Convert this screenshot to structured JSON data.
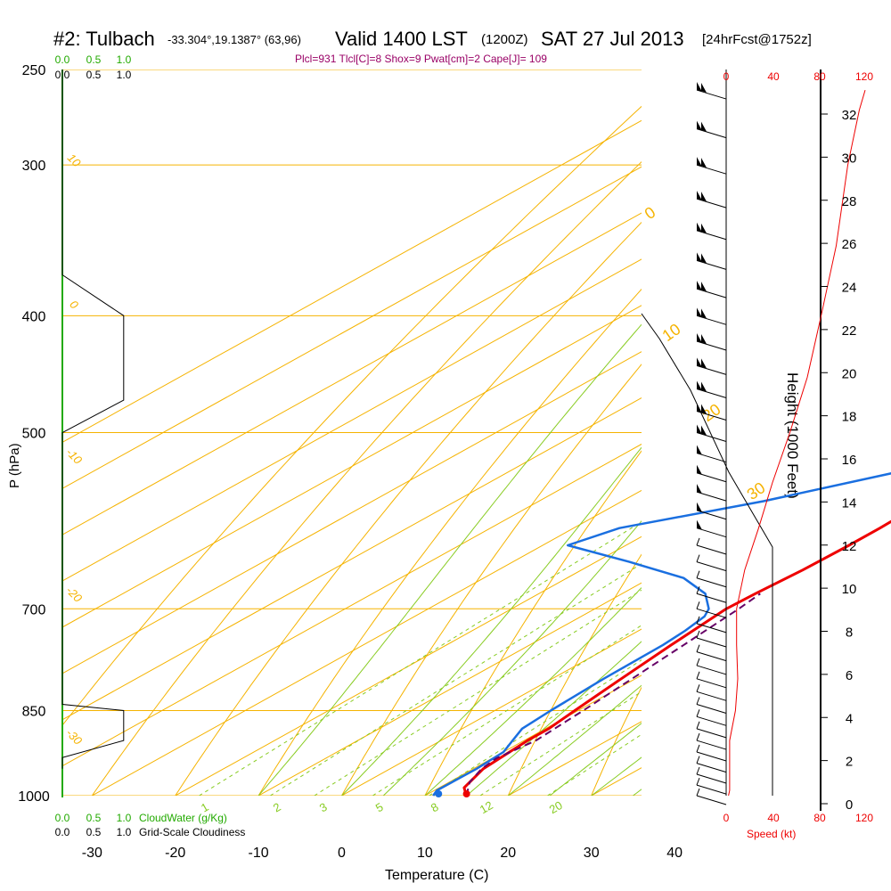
{
  "header": {
    "station": "#2: Tulbach",
    "coords": "-33.304°,19.1387° (63,96)",
    "valid": "Valid 1400 LST",
    "zulu": "(1200Z)",
    "date": "SAT 27 Jul 2013",
    "forecast": "[24hrFcst@1752z]",
    "indices": "Plcl=931 Tlcl[C]=8 Shox=9 Pwat[cm]=2 Cape[J]= 109"
  },
  "colors": {
    "temperature": "#ee0000",
    "dewpoint": "#1a6fe0",
    "parcel": "#660066",
    "isobar": "#f5b300",
    "dry_adiabat": "#f5b300",
    "moist_adiabat": "#88cc22",
    "mixing_ratio": "#88cc22",
    "cloud": "#000000",
    "cloudwater_axis": "#22aa00",
    "speed": "#ee0000"
  },
  "chart_data": {
    "type": "line",
    "title": "#2: Tulbach Valid 1400 LST (1200Z) SAT 27 Jul 2013 [24hrFcst@1752z]",
    "xlabel": "Temperature (C)",
    "ylabel": "P (hPa)",
    "y2label": "Height (1000 Feet)",
    "x_ticks": [
      "-30",
      "-20",
      "-10",
      "0",
      "10",
      "20",
      "30",
      "40"
    ],
    "x_tick_values": [
      -30,
      -20,
      -10,
      0,
      10,
      20,
      30,
      40
    ],
    "y_ticks": [
      "250",
      "300",
      "400",
      "500",
      "700",
      "850",
      "1000"
    ],
    "y_tick_values": [
      250,
      300,
      400,
      500,
      700,
      850,
      1000
    ],
    "height_ticks": [
      "0",
      "2",
      "4",
      "6",
      "8",
      "10",
      "12",
      "14",
      "16",
      "18",
      "20",
      "22",
      "24",
      "26",
      "28",
      "30",
      "32"
    ],
    "speed_ticks": [
      "0",
      "40",
      "80",
      "120"
    ],
    "speed_label": "Speed (kt)",
    "cloudwater_ticks": [
      "0.0",
      "0.5",
      "1.0"
    ],
    "cloudwater_label": "CloudWater (g/Kg)",
    "cloudiness_ticks": [
      "0.0",
      "0.5",
      "1.0"
    ],
    "cloudiness_label": "Grid-Scale Cloudiness",
    "dry_adiabat_labels": [
      "10",
      "0",
      "-10",
      "-20",
      "-30"
    ],
    "moist_adiabat_labels": [
      "0",
      "10",
      "20",
      "30"
    ],
    "mixing_ratio_labels": [
      "1",
      "2",
      "3",
      "5",
      "8",
      "12",
      "20"
    ],
    "series": [
      {
        "name": "temperature",
        "points": [
          [
            1000,
            15.0
          ],
          [
            985,
            13.0
          ],
          [
            950,
            11.2
          ],
          [
            900,
            10.4
          ],
          [
            880,
            10.4
          ],
          [
            850,
            9.6
          ],
          [
            800,
            8.3
          ],
          [
            750,
            7.0
          ],
          [
            700,
            5.8
          ],
          [
            680,
            6.0
          ],
          [
            650,
            6.6
          ],
          [
            620,
            6.8
          ],
          [
            600,
            6.8
          ],
          [
            560,
            6.3
          ],
          [
            530,
            5.8
          ],
          [
            500,
            5.8
          ],
          [
            470,
            6.0
          ],
          [
            450,
            6.2
          ],
          [
            430,
            6.2
          ],
          [
            400,
            5.0
          ],
          [
            370,
            3.5
          ],
          [
            350,
            2.3
          ],
          [
            320,
            0.3
          ],
          [
            300,
            -1.2
          ],
          [
            280,
            -1.6
          ],
          [
            260,
            -2.0
          ]
        ]
      },
      {
        "name": "dewpoint",
        "points": [
          [
            1000,
            11.0
          ],
          [
            990,
            10.3
          ],
          [
            950,
            10.4
          ],
          [
            920,
            10.0
          ],
          [
            900,
            8.6
          ],
          [
            880,
            7.2
          ],
          [
            850,
            6.7
          ],
          [
            800,
            6.2
          ],
          [
            750,
            6.0
          ],
          [
            730,
            5.6
          ],
          [
            710,
            4.8
          ],
          [
            700,
            3.7
          ],
          [
            680,
            0.0
          ],
          [
            660,
            -6.0
          ],
          [
            640,
            -16.0
          ],
          [
            620,
            -27.0
          ],
          [
            600,
            -24.5
          ],
          [
            570,
            -13.0
          ],
          [
            540,
            -3.5
          ],
          [
            510,
            2.2
          ],
          [
            500,
            2.3
          ],
          [
            470,
            4.0
          ],
          [
            450,
            4.0
          ],
          [
            430,
            3.7
          ],
          [
            400,
            3.3
          ],
          [
            370,
            0.5
          ],
          [
            350,
            -1.3
          ],
          [
            300,
            -6.0
          ],
          [
            270,
            -8.0
          ],
          [
            262,
            -8.2
          ]
        ]
      },
      {
        "name": "parcel",
        "points": [
          [
            1000,
            15.0
          ],
          [
            975,
            12.5
          ],
          [
            950,
            11.0
          ],
          [
            931,
            10.5
          ],
          [
            900,
            11.4
          ],
          [
            850,
            10.6
          ],
          [
            800,
            9.6
          ],
          [
            750,
            8.5
          ],
          [
            700,
            7.3
          ],
          [
            680,
            6.6
          ]
        ]
      }
    ],
    "cloud_fraction": [
      [
        250,
        0.0
      ],
      [
        350,
        0.0
      ],
      [
        370,
        0.0
      ],
      [
        400,
        0.8
      ],
      [
        470,
        0.8
      ],
      [
        500,
        0.0
      ],
      [
        510,
        0.0
      ],
      [
        830,
        0.0
      ],
      [
        840,
        0.0
      ],
      [
        850,
        0.8
      ],
      [
        900,
        0.8
      ],
      [
        930,
        0.0
      ],
      [
        950,
        0.0
      ]
    ],
    "wind_speed_profile": [
      [
        1000,
        2
      ],
      [
        990,
        3
      ],
      [
        970,
        3
      ],
      [
        900,
        3
      ],
      [
        850,
        8
      ],
      [
        800,
        10
      ],
      [
        750,
        9
      ],
      [
        700,
        9
      ],
      [
        650,
        16
      ],
      [
        600,
        28
      ],
      [
        550,
        40
      ],
      [
        500,
        55
      ],
      [
        450,
        70
      ],
      [
        400,
        82
      ],
      [
        350,
        95
      ],
      [
        300,
        105
      ],
      [
        270,
        115
      ],
      [
        260,
        120
      ]
    ],
    "wind_barb_levels": [
      260,
      280,
      300,
      320,
      340,
      360,
      380,
      400,
      420,
      440,
      460,
      480,
      500,
      520,
      540,
      560,
      580,
      600,
      620,
      640,
      660,
      680,
      700,
      720,
      740,
      760,
      780,
      800,
      820,
      840,
      860,
      880,
      900,
      920,
      940,
      960,
      980,
      1000
    ]
  }
}
